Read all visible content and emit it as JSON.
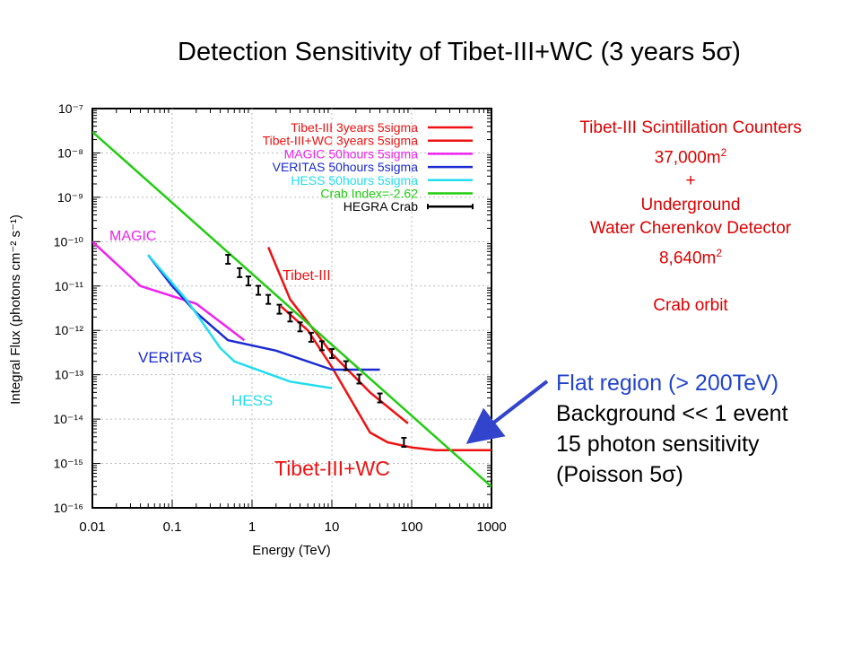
{
  "slide_title": "Detection Sensitivity of Tibet-III+WC (3 years 5σ)",
  "colors": {
    "tibet3": "#ee1111",
    "tibet3wc": "#ee1111",
    "magic": "#ee22ee",
    "veritas": "#1a2ad0",
    "hess": "#22ddee",
    "crab": "#22cc11",
    "hegra": "#000000",
    "arrow": "#3344cc"
  },
  "chart_data": {
    "type": "line",
    "title": "",
    "xlabel": "Energy (TeV)",
    "ylabel": "Integral Flux (photons cm⁻² s⁻¹)",
    "xscale": "log",
    "yscale": "log",
    "xlim": [
      0.01,
      1000
    ],
    "ylim": [
      1e-16,
      1e-07
    ],
    "x_ticks": [
      "0.01",
      "0.1",
      "1",
      "10",
      "100",
      "1000"
    ],
    "y_ticks": [
      "10⁻¹⁶",
      "10⁻¹⁵",
      "10⁻¹⁴",
      "10⁻¹³",
      "10⁻¹²",
      "10⁻¹¹",
      "10⁻¹⁰",
      "10⁻⁹",
      "10⁻⁸",
      "10⁻⁷"
    ],
    "legend_position": "top-right",
    "series": [
      {
        "name": "Tibet-III 3years 5sigma",
        "color": "#ee1111",
        "points": [
          [
            1.6,
            7.5e-11
          ],
          [
            3,
            5e-12
          ],
          [
            6,
            1e-12
          ],
          [
            10,
            3e-13
          ],
          [
            30,
            4e-14
          ],
          [
            90,
            8e-15
          ]
        ]
      },
      {
        "name": "Tibet-III+WC 3years 5sigma",
        "color": "#ee1111",
        "points": [
          [
            2.3,
            3.5e-12
          ],
          [
            5,
            1e-12
          ],
          [
            10,
            1.5e-13
          ],
          [
            30,
            5e-15
          ],
          [
            50,
            3e-15
          ],
          [
            100,
            2.3e-15
          ],
          [
            200,
            2e-15
          ],
          [
            1000,
            2e-15
          ]
        ]
      },
      {
        "name": "MAGIC 50hours 5sigma",
        "color": "#ee22ee",
        "points": [
          [
            0.01,
            1e-10
          ],
          [
            0.04,
            1e-11
          ],
          [
            0.2,
            4e-12
          ],
          [
            0.8,
            6e-13
          ]
        ]
      },
      {
        "name": "VERITAS 50hours 5sigma",
        "color": "#1a2ad0",
        "points": [
          [
            0.05,
            5e-11
          ],
          [
            0.1,
            1e-11
          ],
          [
            0.2,
            2.5e-12
          ],
          [
            0.5,
            6e-13
          ],
          [
            2,
            3.5e-13
          ],
          [
            10,
            1.3e-13
          ],
          [
            40,
            1.3e-13
          ]
        ]
      },
      {
        "name": "HESS 50hours 5sigma",
        "color": "#22ddee",
        "points": [
          [
            0.05,
            5e-11
          ],
          [
            0.15,
            5e-12
          ],
          [
            0.4,
            4e-13
          ],
          [
            0.6,
            2e-13
          ],
          [
            3,
            7e-14
          ],
          [
            10,
            5e-14
          ]
        ]
      },
      {
        "name": "Crab Index=-2.62",
        "color": "#22cc11",
        "points": [
          [
            0.01,
            3e-08
          ],
          [
            1000,
            3e-16
          ]
        ]
      }
    ],
    "hegra_crab": {
      "name": "HEGRA Crab",
      "points": [
        [
          0.5,
          4e-11
        ],
        [
          0.7,
          2e-11
        ],
        [
          0.9,
          1.3e-11
        ],
        [
          1.2,
          8e-12
        ],
        [
          1.6,
          5e-12
        ],
        [
          2.2,
          3e-12
        ],
        [
          3,
          2e-12
        ],
        [
          4,
          1.2e-12
        ],
        [
          5.5,
          7e-13
        ],
        [
          7.5,
          4.5e-13
        ],
        [
          10,
          3e-13
        ],
        [
          15,
          1.6e-13
        ],
        [
          22,
          8e-14
        ],
        [
          40,
          3e-14
        ],
        [
          80,
          3e-15
        ]
      ]
    },
    "annotations": [
      {
        "text": "MAGIC",
        "color": "#ee22ee"
      },
      {
        "text": "Tibet-III",
        "color": "#ee1111"
      },
      {
        "text": "VERITAS",
        "color": "#1a2ad0"
      },
      {
        "text": "HESS",
        "color": "#22ddee"
      },
      {
        "text": "Tibet-III+WC",
        "color": "#ee1111"
      }
    ]
  },
  "right_panel": {
    "line1": "Tibet-III Scintillation Counters",
    "line2_main": "37,000m",
    "line2_sup": "2",
    "line3": "+",
    "line4": "Underground",
    "line5": "Water Cherenkov Detector",
    "line6_main": "8,640m",
    "line6_sup": "2",
    "line7": "Crab orbit"
  },
  "flat_region": {
    "line1": "Flat region (> 200TeV)",
    "line2": "Background << 1 event",
    "line3": "15 photon sensitivity",
    "line4": "(Poisson 5σ)"
  }
}
